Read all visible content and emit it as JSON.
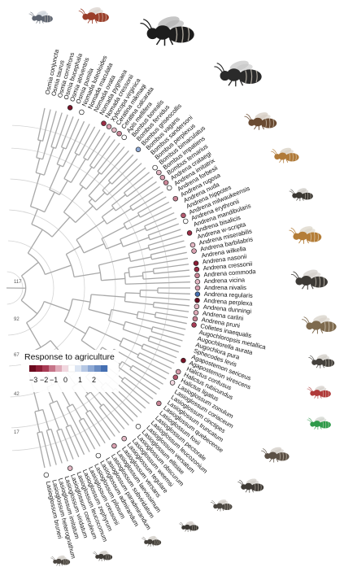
{
  "legend": {
    "title": "Response to agriculture",
    "ticks": [
      "−3",
      "−2",
      "−1",
      "0",
      "1",
      "2"
    ],
    "colors": [
      "#6b0a1e",
      "#8c1d35",
      "#a93b55",
      "#c67488",
      "#dfaab8",
      "#f1d7df",
      "#ffffff",
      "#dce5f2",
      "#b6c8e4",
      "#8ea9d4",
      "#6a8cc3",
      "#456fb2"
    ]
  },
  "age_labels": [
    "117",
    "92",
    "67",
    "42",
    "17"
  ],
  "species": [
    {
      "name": "Osmia conjuncta",
      "color": ""
    },
    {
      "name": "Osmia taurus",
      "color": ""
    },
    {
      "name": "Osmia cornifrons",
      "color": ""
    },
    {
      "name": "Osmia bucephala",
      "color": ""
    },
    {
      "name": "Osmia atriventris",
      "color": "#7a1428"
    },
    {
      "name": "Osmia pumila",
      "color": ""
    },
    {
      "name": "Nomada luteoloides",
      "color": "#ffffff"
    },
    {
      "name": "Nomada maculata",
      "color": ""
    },
    {
      "name": "Nomada ovata",
      "color": ""
    },
    {
      "name": "Nomada pygmaea",
      "color": ""
    },
    {
      "name": "Nomada cressonii",
      "color": "#9c2c45"
    },
    {
      "name": "Xylocopa virginica",
      "color": "#d9a0b0"
    },
    {
      "name": "Ceratina mikmaqi",
      "color": "#e3b8c4"
    },
    {
      "name": "Ceratina calcarata",
      "color": "#c98596"
    },
    {
      "name": "Apis mellifera",
      "color": "#ffffff"
    },
    {
      "name": "Bombus borealis",
      "color": ""
    },
    {
      "name": "Bombus fervidus",
      "color": ""
    },
    {
      "name": "Bombus griseocollis",
      "color": "#8ea9d4"
    },
    {
      "name": "Bombus vagans",
      "color": ""
    },
    {
      "name": "Bombus sandersoni",
      "color": ""
    },
    {
      "name": "Bombus perplexus",
      "color": ""
    },
    {
      "name": "Bombus bimaculatus",
      "color": "#ffffff"
    },
    {
      "name": "Bombus impatiens",
      "color": "#e3b8c4"
    },
    {
      "name": "Bombus ternarius",
      "color": "#d9a0b0"
    },
    {
      "name": "Andrena crataegi",
      "color": "#c98596"
    },
    {
      "name": "Andrena imitatrix",
      "color": "#ffffff"
    },
    {
      "name": "Andrena forbesii",
      "color": ""
    },
    {
      "name": "Andrena rugosa",
      "color": "#c98596"
    },
    {
      "name": "Andrena nuda",
      "color": ""
    },
    {
      "name": "Andrena hippotes",
      "color": ""
    },
    {
      "name": "Andrena milwaukeensis",
      "color": "#b55a70"
    },
    {
      "name": "Andrena erythronii",
      "color": "#ffffff"
    },
    {
      "name": "Andrena mandibularis",
      "color": ""
    },
    {
      "name": "Andrena bisalicis",
      "color": "#9c2c45"
    },
    {
      "name": "Andrena w-scripta",
      "color": ""
    },
    {
      "name": "Andrena miserabilis",
      "color": "#e3b8c4"
    },
    {
      "name": "Andrena barbilabris",
      "color": "#d9a0b0"
    },
    {
      "name": "Andrena wilkella",
      "color": ""
    },
    {
      "name": "Andrena nasonii",
      "color": "#8c1d35"
    },
    {
      "name": "Andrena cressonii",
      "color": "#9c2c45"
    },
    {
      "name": "Andrena commoda",
      "color": "#c98596"
    },
    {
      "name": "Andrena vicina",
      "color": "#e3b8c4"
    },
    {
      "name": "Andrena nivalis",
      "color": "#d9a0b0"
    },
    {
      "name": "Andrena regularis",
      "color": "#456fb2"
    },
    {
      "name": "Andrena perplexa",
      "color": "#6b0a1e"
    },
    {
      "name": "Andrena dunningi",
      "color": "#e3b8c4"
    },
    {
      "name": "Andrena carlini",
      "color": "#dfaab8"
    },
    {
      "name": "Andrena pruni",
      "color": "#c98596"
    },
    {
      "name": "Colletes inaequalis",
      "color": "#a93b55"
    },
    {
      "name": "Augochloropsis metallica",
      "color": ""
    },
    {
      "name": "Augochlorella aurata",
      "color": ""
    },
    {
      "name": "Augochlora pura",
      "color": ""
    },
    {
      "name": "Sphecodes levis",
      "color": ""
    },
    {
      "name": "Agapostemon sericeus",
      "color": ""
    },
    {
      "name": "Agapostemon virescens",
      "color": "#7a1428"
    },
    {
      "name": "Halictus confusus",
      "color": ""
    },
    {
      "name": "Halictus rubicundus",
      "color": "#d9a0b0"
    },
    {
      "name": "Halictus ligatus",
      "color": "#b55a70"
    },
    {
      "name": "Lasioglossum zonulum",
      "color": "#f1d7df"
    },
    {
      "name": "Lasioglossum coriaceum",
      "color": ""
    },
    {
      "name": "Lasioglossum cinctipes",
      "color": ""
    },
    {
      "name": "Lasioglossum truncatum",
      "color": ""
    },
    {
      "name": "Lasioglossum quebecense",
      "color": "#c98596"
    },
    {
      "name": "Lasioglossum foxii",
      "color": ""
    },
    {
      "name": "Lasioglossum pectorale",
      "color": ""
    },
    {
      "name": "Lasioglossum leucozonium",
      "color": ""
    },
    {
      "name": "Lasioglossum versatum",
      "color": ""
    },
    {
      "name": "Lasioglossum ellisiae",
      "color": "#ffffff"
    },
    {
      "name": "Lasioglossum obscurum",
      "color": ""
    },
    {
      "name": "Lasioglossum weemsi",
      "color": ""
    },
    {
      "name": "Lasioglossum tegulare",
      "color": "#e3b8c4"
    },
    {
      "name": "Lasioglossum versans",
      "color": ""
    },
    {
      "name": "Lasioglossum laevissimum",
      "color": "#d9a0b0"
    },
    {
      "name": "Lasioglossum subviridatum",
      "color": ""
    },
    {
      "name": "Lasioglossum paradmirandum",
      "color": ""
    },
    {
      "name": "Lasioglossum admirandum",
      "color": "#ffffff"
    },
    {
      "name": "Lasioglossum pilosum",
      "color": ""
    },
    {
      "name": "Lasioglossum cressonii",
      "color": ""
    },
    {
      "name": "Lasioglossum zephyrum",
      "color": ""
    },
    {
      "name": "Lasioglossum leucocomum",
      "color": ""
    },
    {
      "name": "Lasioglossum coeruleum",
      "color": "#e3b8c4"
    },
    {
      "name": "Lasioglossum viridatum",
      "color": ""
    },
    {
      "name": "Lasioglossum imitatum",
      "color": ""
    },
    {
      "name": "Lasioglossum heterognathum",
      "color": ""
    },
    {
      "name": "Lasioglossum bruneri",
      "color": "#ffffff"
    }
  ],
  "bee_photos": [
    {
      "icon": "fly-bee",
      "body": "#5d6470",
      "wing": "#cdd3da"
    },
    {
      "icon": "red-wasp-bee",
      "body": "#9a3e2a",
      "wing": "#d9d2cc"
    },
    {
      "icon": "bumblebee",
      "body": "#1d1d1d",
      "wing": "#b3b3b3"
    },
    {
      "icon": "bumblebee",
      "body": "#2a2a2a",
      "wing": "#c7c7c7"
    },
    {
      "icon": "bee",
      "body": "#6a4b32",
      "wing": "#d4cbc0"
    },
    {
      "icon": "bee",
      "body": "#b07a38",
      "wing": "#d8d0c3"
    },
    {
      "icon": "bee",
      "body": "#3b3833",
      "wing": "#ccc9c4"
    },
    {
      "icon": "bee",
      "body": "#b47d37",
      "wing": "#dcd5c8"
    },
    {
      "icon": "bee",
      "body": "#3d3a36",
      "wing": "#d2cec9"
    },
    {
      "icon": "bee",
      "body": "#7e6a4e",
      "wing": "#d7d1c8"
    },
    {
      "icon": "bee",
      "body": "#44413c",
      "wing": "#d0ccc6"
    },
    {
      "icon": "red-bee",
      "body": "#b03a3a",
      "wing": "#d6d0cb"
    },
    {
      "icon": "green-bee",
      "body": "#2e9a4a",
      "wing": "#d2d6cf"
    },
    {
      "icon": "bee",
      "body": "#5b5045",
      "wing": "#d1ccc6"
    },
    {
      "icon": "bee",
      "body": "#3f3b36",
      "wing": "#d0ccc7"
    },
    {
      "icon": "bee",
      "body": "#4a4640",
      "wing": "#cfcbc5"
    },
    {
      "icon": "bee",
      "body": "#3c3934",
      "wing": "#cfcac4"
    },
    {
      "icon": "bee",
      "body": "#45413b",
      "wing": "#d0ccc6"
    },
    {
      "icon": "bee",
      "body": "#403c37",
      "wing": "#cfcbc5"
    },
    {
      "icon": "bee",
      "body": "#4b4640",
      "wing": "#d0ccc6"
    }
  ]
}
